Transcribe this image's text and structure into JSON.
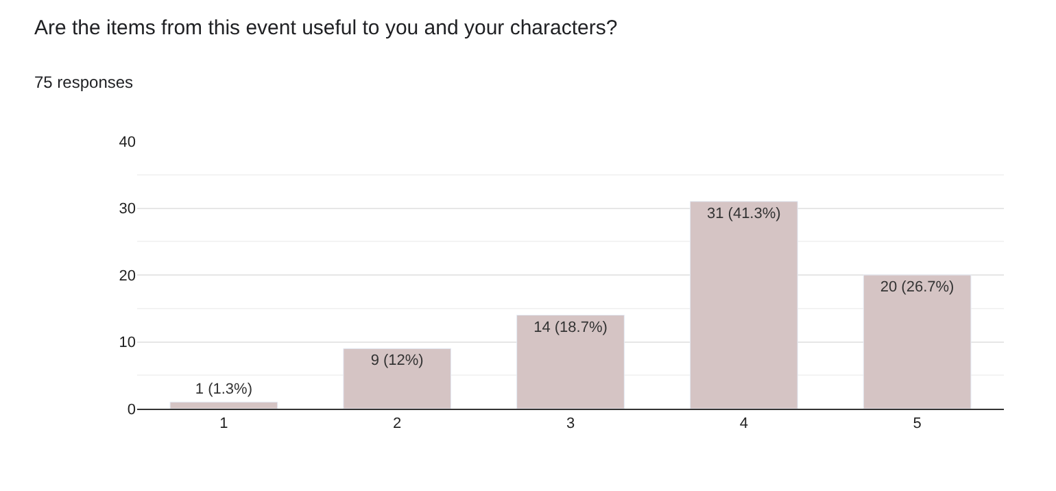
{
  "chart_data": {
    "type": "bar",
    "title": "Are the items from this event useful to you and your characters?",
    "subtitle": "75 responses",
    "categories": [
      "1",
      "2",
      "3",
      "4",
      "5"
    ],
    "values": [
      1,
      9,
      14,
      31,
      20
    ],
    "color": "#d5c4c4",
    "value_labels": [
      "1 (1.3%)",
      "9 (12%)",
      "14 (18.7%)",
      "31 (41.3%)",
      "20 (26.7%)"
    ],
    "ylim": [
      0,
      40
    ],
    "yticks": [
      0,
      {
        "value": 5,
        "label": null
      },
      10,
      {
        "value": 15,
        "label": null
      },
      20,
      {
        "value": 25,
        "label": null
      },
      30,
      {
        "value": 35,
        "label": null
      },
      40
    ],
    "grid": true,
    "legend": false
  }
}
